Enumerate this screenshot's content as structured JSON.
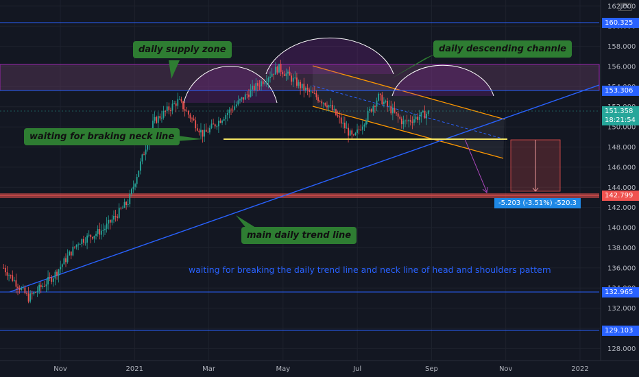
{
  "currency": "JPY",
  "annotations": {
    "supply_zone": "daily supply zone",
    "descending_channel": "daily descending channle",
    "neck_line": "waiting for braking neck line",
    "trend_line": "main daily trend line",
    "note": "waiting for breaking the daily trend line and neck line of head and shoulders pattern"
  },
  "measure_label": "-5.203 (-3.51%) -520.3",
  "price_tags": {
    "top_line": "160.325",
    "supply_bottom": "153.306",
    "last_price": "151.358",
    "countdown": "18:21:54",
    "target": "142.799",
    "line_132": "132.965",
    "line_129": "129.103"
  },
  "colors": {
    "background": "#131722",
    "up": "#26a69a",
    "down": "#ef5350",
    "blue_line": "#2962ff",
    "callout": "#2e7d32",
    "neck_line": "#f5e663",
    "channel": "#ff9800",
    "supply": "#9c27b0"
  },
  "chart_data": {
    "type": "candlestick",
    "x_axis_ticks": [
      "Nov",
      "2021",
      "Mar",
      "May",
      "Jul",
      "Sep",
      "Nov",
      "2022"
    ],
    "y_axis_ticks": [
      "162.000",
      "160.000",
      "158.000",
      "156.000",
      "154.000",
      "152.000",
      "150.000",
      "148.000",
      "146.000",
      "144.000",
      "142.000",
      "140.000",
      "138.000",
      "136.000",
      "134.000",
      "132.000",
      "130.000",
      "128.000"
    ],
    "ylim": [
      126.8,
      162.6
    ],
    "levels": [
      160.325,
      153.306,
      142.799,
      132.965,
      129.103
    ],
    "last_price": 151.358,
    "neck_line": 148.4,
    "supply_zone": [
      153.306,
      156.1
    ],
    "trend_line": {
      "from": [
        "Sep 2020",
        133.0
      ],
      "to": [
        "Dec 2021",
        154.2
      ]
    },
    "measure": {
      "from": 148.4,
      "to": 143.2,
      "change": -5.203,
      "percent": -3.51
    },
    "close_path": [
      {
        "date": "Sep 2020",
        "price": 136.0
      },
      {
        "date": "Oct 2020",
        "price": 133.0
      },
      {
        "date": "Nov 2020",
        "price": 135.2
      },
      {
        "date": "Dec 2020",
        "price": 138.6
      },
      {
        "date": "Jan 2021",
        "price": 139.8
      },
      {
        "date": "Feb 2021",
        "price": 142.6
      },
      {
        "date": "Mar 2021",
        "price": 150.5
      },
      {
        "date": "Mar 2021",
        "price": 152.6
      },
      {
        "date": "Apr 2021",
        "price": 149.2
      },
      {
        "date": "Apr 2021",
        "price": 151.5
      },
      {
        "date": "May 2021",
        "price": 153.8
      },
      {
        "date": "Jun 2021",
        "price": 155.9
      },
      {
        "date": "Jun 2021",
        "price": 153.8
      },
      {
        "date": "Jul 2021",
        "price": 152.2
      },
      {
        "date": "Jul 2021",
        "price": 148.8
      },
      {
        "date": "Aug 2021",
        "price": 153.0
      },
      {
        "date": "Aug 2021",
        "price": 150.4
      },
      {
        "date": "Sep 2021",
        "price": 151.4
      }
    ]
  }
}
